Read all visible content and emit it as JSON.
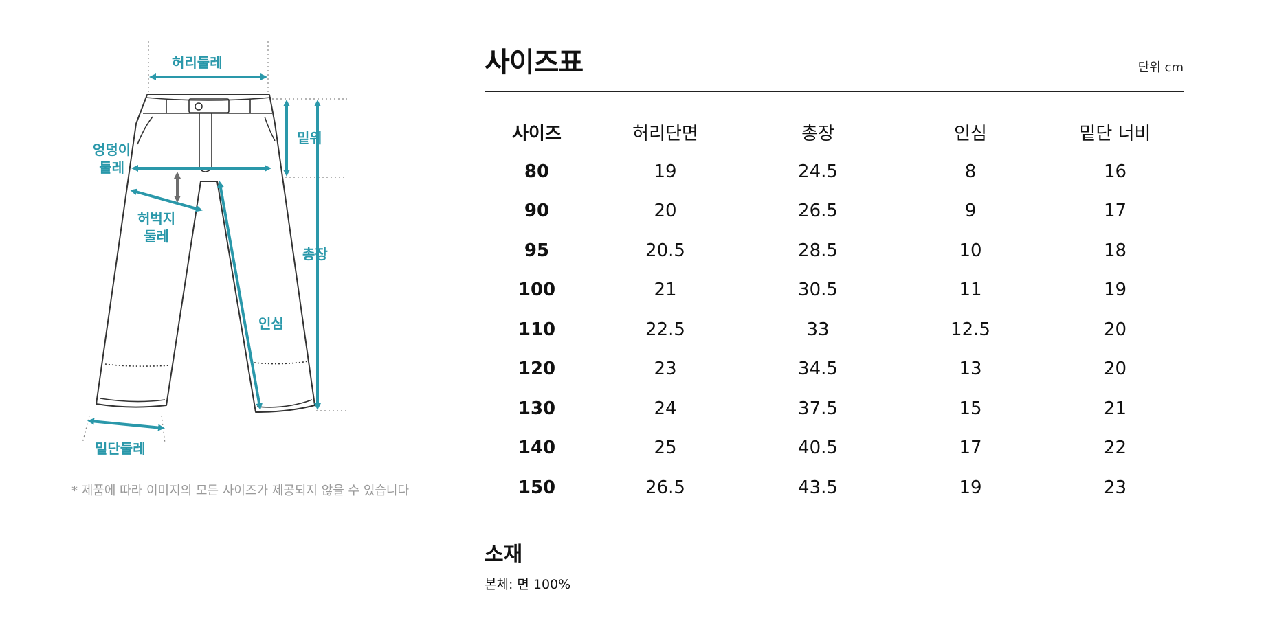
{
  "diagram": {
    "labels": {
      "waist": "허리둘레",
      "hip": "엉덩이\n둘레",
      "rise": "밑위",
      "thigh": "허벅지\n둘레",
      "length": "총장",
      "inseam": "인심",
      "hem": "밑단둘레"
    },
    "note": "* 제품에 따라 이미지의 모든 사이즈가 제공되지 않을 수 있습니다",
    "accent_color": "#2a98aa",
    "secondary_arrow_color": "#6e6e6e"
  },
  "table": {
    "title": "사이즈표",
    "unit": "단위 cm",
    "headers": [
      "사이즈",
      "허리단면",
      "총장",
      "인심",
      "밑단 너비"
    ],
    "rows": [
      [
        "80",
        "19",
        "24.5",
        "8",
        "16"
      ],
      [
        "90",
        "20",
        "26.5",
        "9",
        "17"
      ],
      [
        "95",
        "20.5",
        "28.5",
        "10",
        "18"
      ],
      [
        "100",
        "21",
        "30.5",
        "11",
        "19"
      ],
      [
        "110",
        "22.5",
        "33",
        "12.5",
        "20"
      ],
      [
        "120",
        "23",
        "34.5",
        "13",
        "20"
      ],
      [
        "130",
        "24",
        "37.5",
        "15",
        "21"
      ],
      [
        "140",
        "25",
        "40.5",
        "17",
        "22"
      ],
      [
        "150",
        "26.5",
        "43.5",
        "19",
        "23"
      ]
    ]
  },
  "material": {
    "title": "소재",
    "text": "본체: 면 100%"
  }
}
